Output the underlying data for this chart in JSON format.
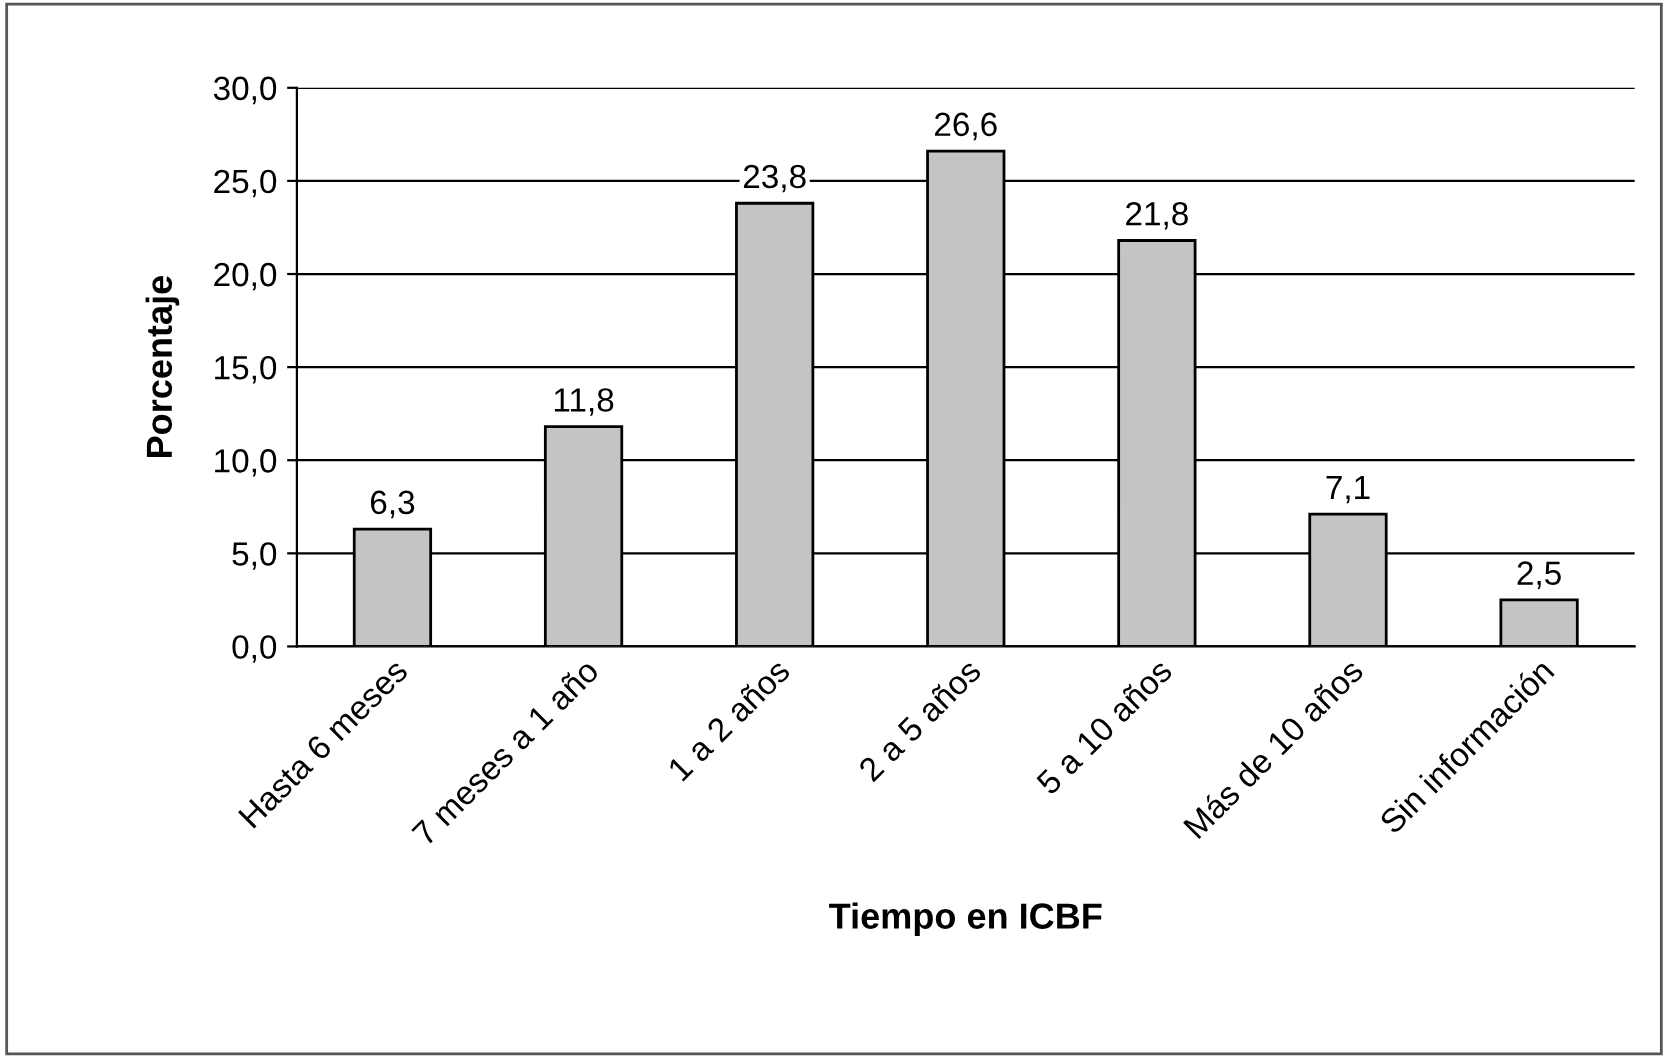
{
  "chart_data": {
    "type": "bar",
    "xlabel": "Tiempo en ICBF",
    "ylabel": "Porcentaje",
    "categories": [
      "Hasta 6 meses",
      "7 meses a 1 año",
      "1 a 2 años",
      "2 a 5 años",
      "5 a 10 años",
      "Más de 10 años",
      "Sin información"
    ],
    "values": [
      6.3,
      11.8,
      23.8,
      26.6,
      21.8,
      7.1,
      2.5
    ],
    "value_labels": [
      "6,3",
      "11,8",
      "23,8",
      "26,6",
      "21,8",
      "7,1",
      "2,5"
    ],
    "color": "#c4c4c4",
    "ylim": [
      0,
      30
    ],
    "yticks": [
      {
        "value": 0,
        "label": "0,0"
      },
      {
        "value": 5,
        "label": "5,0"
      },
      {
        "value": 10,
        "label": "10,0"
      },
      {
        "value": 15,
        "label": "15,0"
      },
      {
        "value": 20,
        "label": "20,0"
      },
      {
        "value": 25,
        "label": "25,0"
      },
      {
        "value": 30,
        "label": "30,0"
      }
    ],
    "grid": "y",
    "legend": false
  }
}
